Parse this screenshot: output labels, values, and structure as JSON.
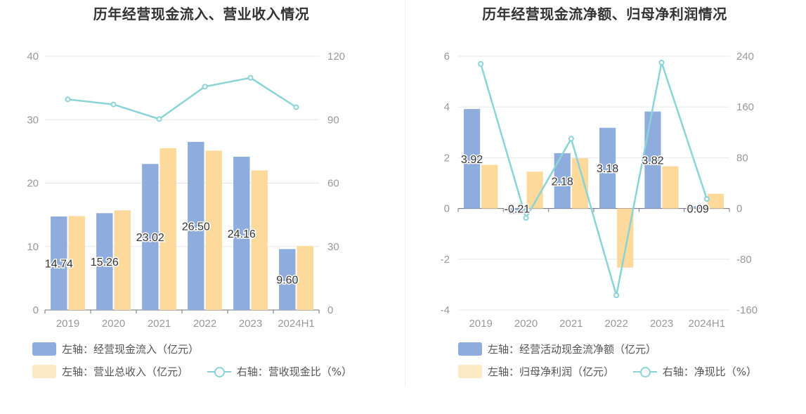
{
  "colors": {
    "blue": "#8eacdc",
    "orange": "#fdd99c",
    "line": "#8ad4d8",
    "axis": "#999999",
    "grid": "#e6e8ef",
    "label": "#333333"
  },
  "chart_data": [
    {
      "type": "bar",
      "title": "历年经营现金流入、营业收入情况",
      "categories": [
        "2019",
        "2020",
        "2021",
        "2022",
        "2023",
        "2024H1"
      ],
      "ylim_left": [
        0,
        40
      ],
      "ylim_right": [
        0,
        120
      ],
      "yticks_left": [
        "0",
        "10",
        "20",
        "30",
        "40"
      ],
      "yticks_right": [
        "0",
        "30",
        "60",
        "90",
        "120"
      ],
      "grid": true,
      "series": [
        {
          "name": "左轴：经营现金流入（亿元）",
          "axis": "left",
          "kind": "bar",
          "color": "#8eacdc",
          "values": [
            14.74,
            15.26,
            23.02,
            26.5,
            24.16,
            9.6
          ],
          "labels": [
            "14.74",
            "15.26",
            "23.02",
            "26.50",
            "24.16",
            "9.60"
          ]
        },
        {
          "name": "左轴：营业总收入（亿元）",
          "axis": "left",
          "kind": "bar",
          "color": "#fdd99c",
          "values": [
            14.8,
            15.7,
            25.5,
            25.1,
            22.0,
            10.1
          ]
        },
        {
          "name": "右轴：营收现金比（%）",
          "axis": "right",
          "kind": "line",
          "color": "#8ad4d8",
          "values": [
            99.6,
            97.2,
            90.3,
            105.6,
            109.8,
            95.9
          ]
        }
      ],
      "legend_position": "bottom-left"
    },
    {
      "type": "bar",
      "title": "历年经营现金流净额、归母净利润情况",
      "categories": [
        "2019",
        "2020",
        "2021",
        "2022",
        "2023",
        "2024H1"
      ],
      "ylim_left": [
        -4,
        6
      ],
      "ylim_right": [
        -160,
        240
      ],
      "yticks_left": [
        "-4",
        "-2",
        "0",
        "2",
        "4",
        "6"
      ],
      "yticks_right": [
        "-160",
        "-80",
        "0",
        "80",
        "160",
        "240"
      ],
      "grid": true,
      "series": [
        {
          "name": "左轴：经营活动现金流净额（亿元）",
          "axis": "left",
          "kind": "bar",
          "color": "#8eacdc",
          "values": [
            3.92,
            -0.21,
            2.18,
            3.18,
            3.82,
            0.09
          ],
          "labels": [
            "3.92",
            "-0.21",
            "2.18",
            "3.18",
            "3.82",
            "0.09"
          ]
        },
        {
          "name": "左轴：归母净利润（亿元）",
          "axis": "left",
          "kind": "bar",
          "color": "#fdd99c",
          "values": [
            1.72,
            1.45,
            1.98,
            -2.33,
            1.66,
            0.58
          ]
        },
        {
          "name": "右轴：净现比（%）",
          "axis": "right",
          "kind": "line",
          "color": "#8ad4d8",
          "values": [
            228,
            -15,
            110,
            -137,
            230,
            15
          ]
        }
      ],
      "legend_position": "bottom-left"
    }
  ]
}
